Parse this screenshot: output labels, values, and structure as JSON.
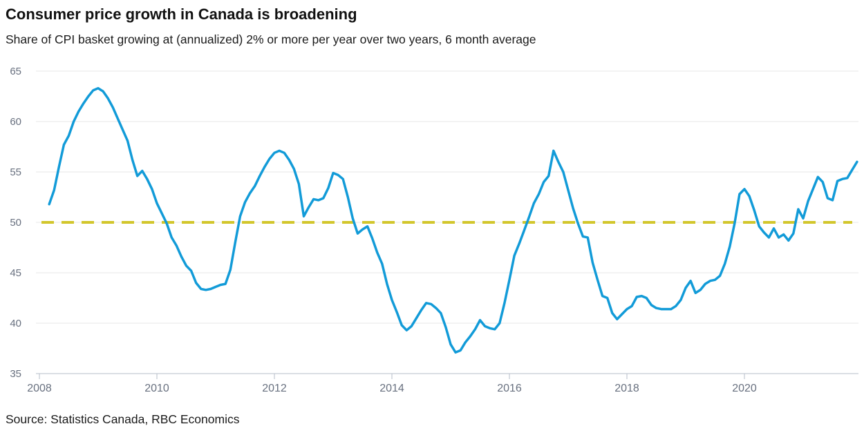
{
  "header": {
    "title": "Consumer price growth in Canada is broadening",
    "subtitle": "Share of CPI basket growing at (annualized) 2% or more per year over two years, 6 month average"
  },
  "footer": {
    "source": "Source: Statistics Canada, RBC Economics"
  },
  "colors": {
    "line": "#129bd8",
    "target_dash": "#d2c62c",
    "gridline": "#e7e7e7",
    "axis": "#b5bcc8",
    "tick_label": "#68707f",
    "text": "#1a1a1a"
  },
  "chart_data": {
    "type": "line",
    "title": "Consumer price growth in Canada is broadening",
    "subtitle": "Share of CPI basket growing at (annualized) 2% or more per year over two years, 6 month average",
    "xlabel": "",
    "ylabel": "",
    "ylim": [
      35,
      65
    ],
    "xlim": [
      2008,
      2022
    ],
    "grid": "horizontal",
    "legend": "none",
    "x_ticks": [
      2008,
      2010,
      2012,
      2014,
      2016,
      2018,
      2020
    ],
    "y_ticks": [
      35,
      40,
      45,
      50,
      55,
      60,
      65
    ],
    "reference_line": {
      "value": 50,
      "style": "dashed",
      "color": "#d2c62c"
    },
    "series": [
      {
        "name": "Share of CPI basket growing at 2%+ (6 month average)",
        "color": "#129bd8",
        "frequency": "monthly",
        "start_year": 2008,
        "start_month": 3,
        "values": [
          51.8,
          53.2,
          55.5,
          57.7,
          58.6,
          60.0,
          61.0,
          61.8,
          62.5,
          63.1,
          63.3,
          63.0,
          62.3,
          61.4,
          60.3,
          59.2,
          58.1,
          56.2,
          54.6,
          55.1,
          54.3,
          53.3,
          51.9,
          50.9,
          49.9,
          48.5,
          47.7,
          46.6,
          45.7,
          45.2,
          44.0,
          43.4,
          43.3,
          43.4,
          43.6,
          43.8,
          43.9,
          45.3,
          48.0,
          50.6,
          52.0,
          52.9,
          53.6,
          54.6,
          55.5,
          56.3,
          56.9,
          57.1,
          56.9,
          56.2,
          55.3,
          53.8,
          50.6,
          51.5,
          52.3,
          52.2,
          52.4,
          53.4,
          54.9,
          54.7,
          54.3,
          52.5,
          50.4,
          48.9,
          49.3,
          49.6,
          48.4,
          47.0,
          45.9,
          43.9,
          42.3,
          41.1,
          39.8,
          39.3,
          39.7,
          40.5,
          41.3,
          42.0,
          41.9,
          41.5,
          41.0,
          39.6,
          37.9,
          37.1,
          37.3,
          38.1,
          38.7,
          39.4,
          40.3,
          39.7,
          39.5,
          39.4,
          40.0,
          42.0,
          44.3,
          46.7,
          47.9,
          49.2,
          50.5,
          51.9,
          52.8,
          54.0,
          54.6,
          57.1,
          56.0,
          55.0,
          53.2,
          51.4,
          49.9,
          48.6,
          48.5,
          46.0,
          44.3,
          42.7,
          42.5,
          41.0,
          40.4,
          40.9,
          41.4,
          41.7,
          42.6,
          42.7,
          42.5,
          41.8,
          41.5,
          41.4,
          41.4,
          41.4,
          41.7,
          42.3,
          43.5,
          44.2,
          43.0,
          43.3,
          43.9,
          44.2,
          44.3,
          44.7,
          45.9,
          47.6,
          49.9,
          52.8,
          53.3,
          52.6,
          51.2,
          49.6,
          49.0,
          48.5,
          49.4,
          48.5,
          48.8,
          48.2,
          48.9,
          51.3,
          50.4,
          52.1,
          53.3,
          54.5,
          54.0,
          52.4,
          52.2,
          54.1,
          54.3,
          54.4,
          55.2,
          56.0
        ]
      }
    ]
  }
}
